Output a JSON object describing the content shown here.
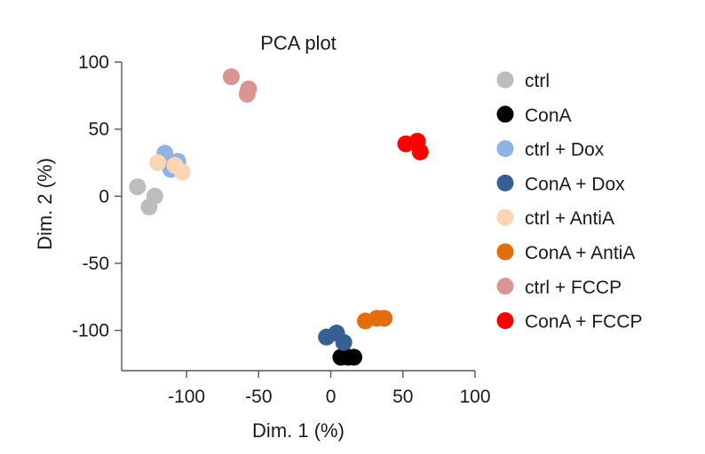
{
  "chart_data": {
    "type": "scatter",
    "title": "PCA plot",
    "xlabel": "Dim. 1 (%)",
    "ylabel": "Dim. 2 (%)",
    "xlim": [
      -145,
      100
    ],
    "ylim": [
      -130,
      100
    ],
    "xticks": [
      -100,
      -50,
      0,
      50,
      100
    ],
    "yticks": [
      100,
      50,
      0,
      -50,
      -100
    ],
    "xtick_labels": [
      "-100",
      "-50",
      "0",
      "50",
      "100"
    ],
    "ytick_labels": [
      "100",
      "50",
      "0",
      "-50",
      "-100"
    ],
    "grid": false,
    "legend_position": "right",
    "series": [
      {
        "name": "ctrl",
        "color": "#bdbdbd",
        "points": [
          [
            -134,
            7
          ],
          [
            -122,
            0
          ],
          [
            -126,
            -8
          ]
        ]
      },
      {
        "name": "ConA",
        "color": "#000000",
        "points": [
          [
            7,
            -120
          ],
          [
            12,
            -120
          ],
          [
            16,
            -120
          ]
        ]
      },
      {
        "name": "ctrl + Dox",
        "color": "#8fb4e3",
        "points": [
          [
            -115,
            32
          ],
          [
            -106,
            26
          ],
          [
            -111,
            20
          ]
        ]
      },
      {
        "name": "ConA + Dox",
        "color": "#375f92",
        "points": [
          [
            -3,
            -105
          ],
          [
            4,
            -102
          ],
          [
            9,
            -109
          ]
        ]
      },
      {
        "name": "ctrl + AntiA",
        "color": "#fcd5b5",
        "points": [
          [
            -120,
            25
          ],
          [
            -103,
            18
          ],
          [
            -108,
            23
          ]
        ]
      },
      {
        "name": "ConA + AntiA",
        "color": "#e46c0a",
        "points": [
          [
            24,
            -93
          ],
          [
            32,
            -91
          ],
          [
            37,
            -91
          ]
        ]
      },
      {
        "name": "ctrl + FCCP",
        "color": "#d99594",
        "points": [
          [
            -69,
            89
          ],
          [
            -57,
            80
          ],
          [
            -58,
            76
          ]
        ]
      },
      {
        "name": "ConA + FCCP",
        "color": "#ff0000",
        "points": [
          [
            52,
            39
          ],
          [
            60,
            41
          ],
          [
            62,
            33
          ]
        ]
      }
    ]
  }
}
